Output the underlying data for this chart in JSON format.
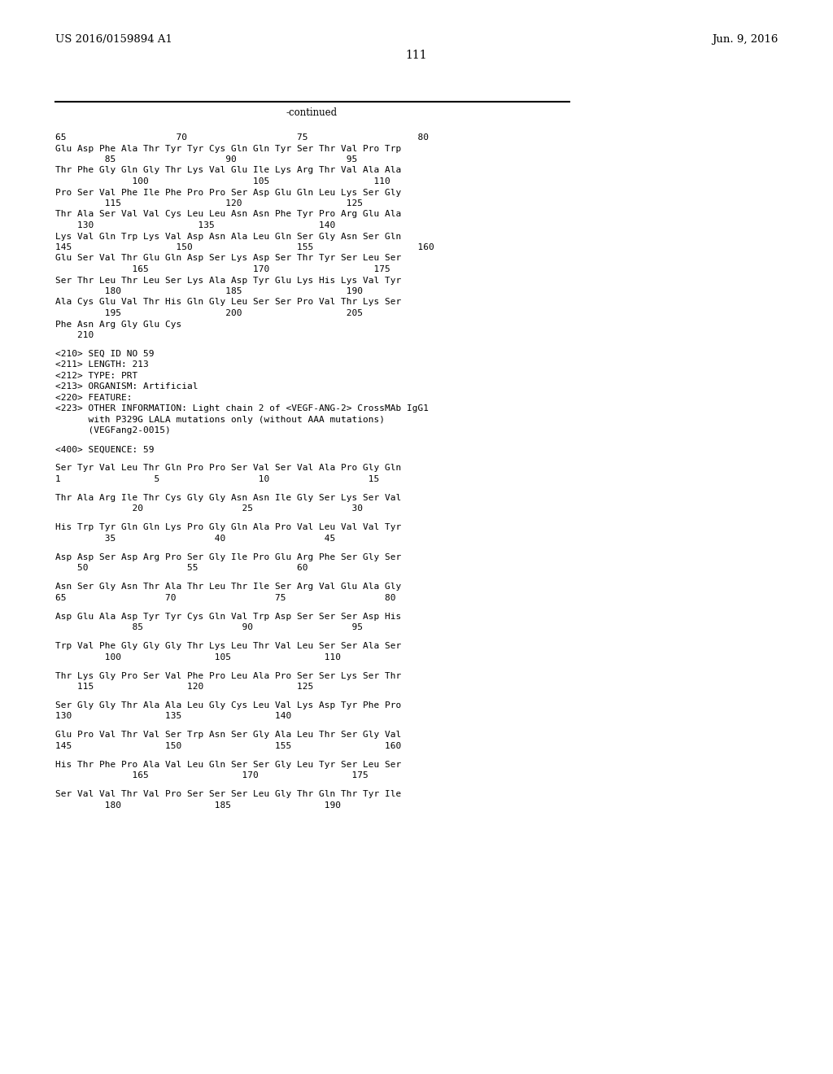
{
  "header_left": "US 2016/0159894 A1",
  "header_right": "Jun. 9, 2016",
  "page_number": "111",
  "continued_label": "-continued",
  "background_color": "#ffffff",
  "text_color": "#000000",
  "font_size_body": 8.0,
  "font_size_header": 9.5,
  "font_size_page": 10.0,
  "lines": [
    {
      "text": "65                    70                    75                    80"
    },
    {
      "text": "Glu Asp Phe Ala Thr Tyr Tyr Cys Gln Gln Tyr Ser Thr Val Pro Trp"
    },
    {
      "text": "         85                    90                    95"
    },
    {
      "text": "Thr Phe Gly Gln Gly Thr Lys Val Glu Ile Lys Arg Thr Val Ala Ala"
    },
    {
      "text": "              100                   105                   110"
    },
    {
      "text": "Pro Ser Val Phe Ile Phe Pro Pro Ser Asp Glu Gln Leu Lys Ser Gly"
    },
    {
      "text": "         115                   120                   125"
    },
    {
      "text": "Thr Ala Ser Val Val Cys Leu Leu Asn Asn Phe Tyr Pro Arg Glu Ala"
    },
    {
      "text": "    130                   135                   140"
    },
    {
      "text": "Lys Val Gln Trp Lys Val Asp Asn Ala Leu Gln Ser Gly Asn Ser Gln"
    },
    {
      "text": "145                   150                   155                   160"
    },
    {
      "text": "Glu Ser Val Thr Glu Gln Asp Ser Lys Asp Ser Thr Tyr Ser Leu Ser"
    },
    {
      "text": "              165                   170                   175"
    },
    {
      "text": "Ser Thr Leu Thr Leu Ser Lys Ala Asp Tyr Glu Lys His Lys Val Tyr"
    },
    {
      "text": "         180                   185                   190"
    },
    {
      "text": "Ala Cys Glu Val Thr His Gln Gly Leu Ser Ser Pro Val Thr Lys Ser"
    },
    {
      "text": "         195                   200                   205"
    },
    {
      "text": "Phe Asn Arg Gly Glu Cys"
    },
    {
      "text": "    210"
    },
    {
      "text": ""
    },
    {
      "text": "<210> SEQ ID NO 59"
    },
    {
      "text": "<211> LENGTH: 213"
    },
    {
      "text": "<212> TYPE: PRT"
    },
    {
      "text": "<213> ORGANISM: Artificial"
    },
    {
      "text": "<220> FEATURE:"
    },
    {
      "text": "<223> OTHER INFORMATION: Light chain 2 of <VEGF-ANG-2> CrossMAb IgG1"
    },
    {
      "text": "      with P329G LALA mutations only (without AAA mutations)"
    },
    {
      "text": "      (VEGFang2-0015)"
    },
    {
      "text": ""
    },
    {
      "text": "<400> SEQUENCE: 59"
    },
    {
      "text": ""
    },
    {
      "text": "Ser Tyr Val Leu Thr Gln Pro Pro Ser Val Ser Val Ala Pro Gly Gln"
    },
    {
      "text": "1                 5                  10                  15"
    },
    {
      "text": ""
    },
    {
      "text": "Thr Ala Arg Ile Thr Cys Gly Gly Asn Asn Ile Gly Ser Lys Ser Val"
    },
    {
      "text": "              20                  25                  30"
    },
    {
      "text": ""
    },
    {
      "text": "His Trp Tyr Gln Gln Lys Pro Gly Gln Ala Pro Val Leu Val Val Tyr"
    },
    {
      "text": "         35                  40                  45"
    },
    {
      "text": ""
    },
    {
      "text": "Asp Asp Ser Asp Arg Pro Ser Gly Ile Pro Glu Arg Phe Ser Gly Ser"
    },
    {
      "text": "    50                  55                  60"
    },
    {
      "text": ""
    },
    {
      "text": "Asn Ser Gly Asn Thr Ala Thr Leu Thr Ile Ser Arg Val Glu Ala Gly"
    },
    {
      "text": "65                  70                  75                  80"
    },
    {
      "text": ""
    },
    {
      "text": "Asp Glu Ala Asp Tyr Tyr Cys Gln Val Trp Asp Ser Ser Ser Asp His"
    },
    {
      "text": "              85                  90                  95"
    },
    {
      "text": ""
    },
    {
      "text": "Trp Val Phe Gly Gly Gly Thr Lys Leu Thr Val Leu Ser Ser Ala Ser"
    },
    {
      "text": "         100                 105                 110"
    },
    {
      "text": ""
    },
    {
      "text": "Thr Lys Gly Pro Ser Val Phe Pro Leu Ala Pro Ser Ser Lys Ser Thr"
    },
    {
      "text": "    115                 120                 125"
    },
    {
      "text": ""
    },
    {
      "text": "Ser Gly Gly Thr Ala Ala Leu Gly Cys Leu Val Lys Asp Tyr Phe Pro"
    },
    {
      "text": "130                 135                 140"
    },
    {
      "text": ""
    },
    {
      "text": "Glu Pro Val Thr Val Ser Trp Asn Ser Gly Ala Leu Thr Ser Gly Val"
    },
    {
      "text": "145                 150                 155                 160"
    },
    {
      "text": ""
    },
    {
      "text": "His Thr Phe Pro Ala Val Leu Gln Ser Ser Gly Leu Tyr Ser Leu Ser"
    },
    {
      "text": "              165                 170                 175"
    },
    {
      "text": ""
    },
    {
      "text": "Ser Val Val Thr Val Pro Ser Ser Ser Leu Gly Thr Gln Thr Tyr Ile"
    },
    {
      "text": "         180                 185                 190"
    }
  ]
}
